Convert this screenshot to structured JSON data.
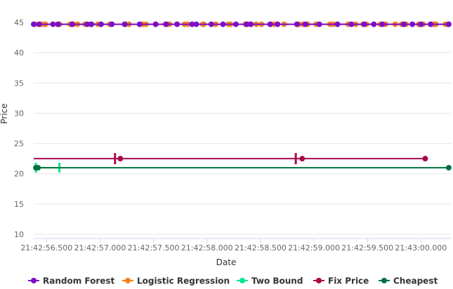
{
  "chart_data": {
    "type": "line",
    "xlabel": "Date",
    "ylabel": "Price",
    "xlim": [
      56.38,
      60.28
    ],
    "ylim": [
      10,
      45
    ],
    "y_ticks": [
      10,
      15,
      20,
      25,
      30,
      35,
      40,
      45
    ],
    "x_ticks": [
      {
        "value": 56.5,
        "label": "21:42:56.500"
      },
      {
        "value": 57.0,
        "label": "21:42:57.000"
      },
      {
        "value": 57.5,
        "label": "21:42:57.500"
      },
      {
        "value": 58.0,
        "label": "21:42:58.000"
      },
      {
        "value": 58.5,
        "label": "21:42:58.500"
      },
      {
        "value": 59.0,
        "label": "21:42:59.000"
      },
      {
        "value": 59.5,
        "label": "21:42:59.500"
      },
      {
        "value": 60.0,
        "label": "21:43:00.000"
      }
    ],
    "grid": true,
    "legend_position": "bottom",
    "series": [
      {
        "name": "Random Forest",
        "color": "#7b0fc8",
        "marker": "circle",
        "y": 44.7,
        "x": [
          56.38,
          56.43,
          56.56,
          56.61,
          56.74,
          56.88,
          56.92,
          57.01,
          57.11,
          57.23,
          57.37,
          57.52,
          57.62,
          57.72,
          57.86,
          57.9,
          58.04,
          58.15,
          58.27,
          58.37,
          58.41,
          58.59,
          58.66,
          58.84,
          58.92,
          59.05,
          59.22,
          59.35,
          59.47,
          59.56,
          59.64,
          59.84,
          59.92,
          60.0,
          60.09,
          60.26
        ]
      },
      {
        "name": "Logistic Regression",
        "color": "#f5801e",
        "marker": "circle",
        "y": 44.7,
        "x": [
          56.39,
          56.45,
          56.48,
          56.49,
          56.6,
          56.62,
          56.72,
          56.73,
          56.75,
          56.79,
          56.86,
          56.91,
          56.98,
          57.09,
          57.11,
          57.24,
          57.27,
          57.4,
          57.43,
          57.52,
          57.61,
          57.65,
          57.72,
          57.79,
          57.82,
          57.96,
          57.97,
          58.08,
          58.2,
          58.22,
          58.36,
          58.38,
          58.41,
          58.46,
          58.51,
          58.6,
          58.63,
          58.72,
          58.85,
          58.86,
          58.9,
          58.94,
          59.02,
          59.15,
          59.18,
          59.32,
          59.39,
          59.46,
          59.49,
          59.62,
          59.67,
          59.76,
          59.82,
          59.86,
          59.98,
          60.02,
          60.12,
          60.14,
          60.23,
          60.25
        ]
      },
      {
        "name": "Two Bound",
        "color": "#00e68e",
        "marker": "line",
        "y": 21.0,
        "x": [
          56.4,
          56.62
        ]
      },
      {
        "name": "Fix Price",
        "color": "#a70a4c",
        "marker": "circle",
        "y": 22.5,
        "x": [
          56.38,
          57.14,
          58.83,
          60.05
        ],
        "marker_x": [
          57.19,
          58.89,
          60.04
        ],
        "tick_x": [
          57.14,
          58.83
        ]
      },
      {
        "name": "Cheapest",
        "color": "#00733d",
        "marker": "circle",
        "y": 21.0,
        "x": [
          56.38,
          56.41,
          60.26
        ],
        "marker_x": [
          56.4,
          56.42,
          60.26
        ]
      }
    ]
  }
}
